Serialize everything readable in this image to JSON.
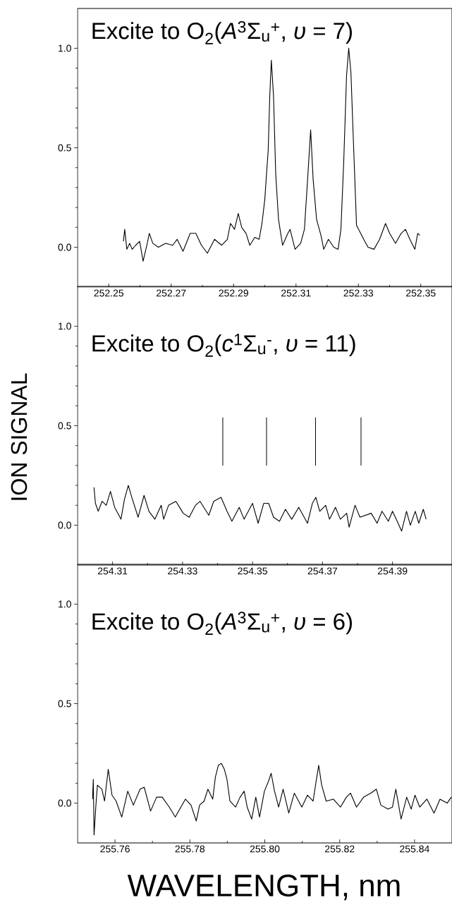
{
  "chart_data": [
    {
      "type": "line",
      "title": "Excite to O$_{2}$(*A*$^{3}$Σ$_{u}$$^{+}$, *υ* = 7)",
      "color": "#000000",
      "marker": "none",
      "xlim": [
        252.24,
        252.36
      ],
      "xticks": [
        252.25,
        252.27,
        252.29,
        252.31,
        252.33,
        252.35
      ],
      "ylim": [
        -0.2,
        1.2
      ],
      "yticks": [
        {
          "value": 0,
          "label": "0.0"
        },
        {
          "value": 0.5,
          "label": "0.5"
        },
        {
          "value": 1,
          "label": "1.0"
        }
      ],
      "x": [
        252.2547,
        252.2551,
        252.2558,
        252.2567,
        252.2575,
        252.2586,
        252.2599,
        252.261,
        252.2622,
        252.263,
        252.2641,
        252.2659,
        252.2682,
        252.2705,
        252.2719,
        252.2738,
        252.2761,
        252.2779,
        252.2797,
        252.2816,
        252.2839,
        252.2862,
        252.288,
        252.289,
        252.2903,
        252.2915,
        252.2926,
        252.294,
        252.2952,
        252.2968,
        252.2982,
        252.2991,
        252.3,
        252.3011,
        252.3016,
        252.3021,
        252.3028,
        252.3035,
        252.3044,
        252.3057,
        252.3074,
        252.3081,
        252.3097,
        252.3115,
        252.3127,
        252.3138,
        252.3147,
        252.3155,
        252.3166,
        252.318,
        252.3189,
        252.3204,
        252.3221,
        252.3235,
        252.3244,
        252.3253,
        252.3262,
        252.3269,
        252.3276,
        252.3285,
        252.3294,
        252.3304,
        252.3317,
        252.3331,
        252.335,
        252.3368,
        252.3387,
        252.34,
        252.3419,
        252.3437,
        252.3451,
        252.3465,
        252.3481,
        252.349,
        252.3497
      ],
      "values": [
        0.03,
        0.09,
        -0.01,
        0.02,
        -0.01,
        0.01,
        0.03,
        -0.07,
        0.01,
        0.07,
        0.02,
        0.0,
        0.02,
        0.01,
        0.04,
        -0.02,
        0.07,
        0.07,
        0.01,
        -0.03,
        0.04,
        0.01,
        0.04,
        0.12,
        0.09,
        0.17,
        0.1,
        0.07,
        0.01,
        0.05,
        0.04,
        0.12,
        0.24,
        0.49,
        0.76,
        0.94,
        0.76,
        0.37,
        0.14,
        0.01,
        0.07,
        0.09,
        -0.01,
        0.02,
        0.09,
        0.36,
        0.59,
        0.34,
        0.14,
        0.06,
        -0.01,
        0.04,
        0.0,
        -0.01,
        0.09,
        0.43,
        0.86,
        1.0,
        0.88,
        0.49,
        0.11,
        0.08,
        0.04,
        0.0,
        -0.01,
        0.04,
        0.12,
        0.07,
        0.02,
        0.07,
        0.09,
        0.04,
        -0.01,
        0.07,
        0.06
      ]
    },
    {
      "type": "line",
      "title": "Excite to O$_{2}$(*c*$^{1}$Σ$_{u}$$^{-}$, *υ* = 11)",
      "ylabel": "ION SIGNAL",
      "color": "#000000",
      "marker": "none",
      "xlim": [
        254.3,
        254.407
      ],
      "xticks": [
        254.31,
        254.33,
        254.35,
        254.37,
        254.39
      ],
      "ylim": [
        -0.2,
        1.2
      ],
      "yticks": [
        {
          "value": 0,
          "label": "0.0"
        },
        {
          "value": 0.5,
          "label": "0.5"
        },
        {
          "value": 1,
          "label": "1.0"
        }
      ],
      "ref_lines": [
        {
          "axis": "x",
          "value": 254.3415
        },
        {
          "axis": "x",
          "value": 254.354
        },
        {
          "axis": "x",
          "value": 254.368
        },
        {
          "axis": "x",
          "value": 254.381
        }
      ],
      "x": [
        254.3047,
        254.3051,
        254.3059,
        254.307,
        254.3082,
        254.3094,
        254.3106,
        254.3124,
        254.3134,
        254.3145,
        254.3155,
        254.3173,
        254.319,
        254.3204,
        254.3221,
        254.3239,
        254.3246,
        254.326,
        254.3281,
        254.3302,
        254.3319,
        254.3337,
        254.335,
        254.3375,
        254.3389,
        254.341,
        254.3427,
        254.3441,
        254.3462,
        254.3476,
        254.35,
        254.3516,
        254.3532,
        254.3546,
        254.356,
        254.3577,
        254.3594,
        254.3612,
        254.3632,
        254.3657,
        254.3671,
        254.3681,
        254.3692,
        254.3709,
        254.372,
        254.3737,
        254.3751,
        254.3769,
        254.3776,
        254.3793,
        254.3807,
        254.3839,
        254.3856,
        254.387,
        254.3888,
        254.39,
        254.3916,
        254.3926,
        254.394,
        254.3951,
        254.3965,
        254.3975,
        254.3988,
        254.3996
      ],
      "values": [
        0.19,
        0.11,
        0.07,
        0.12,
        0.1,
        0.17,
        0.09,
        0.03,
        0.13,
        0.2,
        0.14,
        0.04,
        0.15,
        0.07,
        0.03,
        0.1,
        0.03,
        0.1,
        0.12,
        0.06,
        0.04,
        0.1,
        0.12,
        0.05,
        0.12,
        0.14,
        0.07,
        0.02,
        0.09,
        0.03,
        0.11,
        0.01,
        0.11,
        0.11,
        0.04,
        0.02,
        0.08,
        0.03,
        0.09,
        0.01,
        0.11,
        0.14,
        0.07,
        0.1,
        0.03,
        0.09,
        0.03,
        0.06,
        -0.01,
        0.1,
        0.04,
        0.06,
        0.01,
        0.07,
        0.02,
        0.07,
        0.01,
        -0.03,
        0.07,
        0.0,
        0.07,
        0.01,
        0.08,
        0.03
      ]
    },
    {
      "type": "line",
      "title": "Excite to O$_{2}$(*A*$^{3}$Σ$_{u}$$^{+}$, *υ* = 6)",
      "xlabel": "WAVELENGTH, nm",
      "color": "#000000",
      "marker": "none",
      "xlim": [
        255.75,
        255.85
      ],
      "xticks": [
        255.76,
        255.78,
        {
          "value": 255.8,
          "label": "255.80"
        },
        255.82,
        255.84
      ],
      "ylim": [
        -0.2,
        1.2
      ],
      "yticks": [
        {
          "value": 0,
          "label": "0.0"
        },
        {
          "value": 0.5,
          "label": "0.5"
        },
        {
          "value": 1,
          "label": "1.0"
        }
      ],
      "x": [
        255.754,
        255.7542,
        255.7544,
        255.7549,
        255.7553,
        255.7565,
        255.7572,
        255.7582,
        255.7592,
        255.7603,
        255.7618,
        255.7634,
        255.7649,
        255.7667,
        255.7678,
        255.7695,
        255.7711,
        255.7726,
        255.7745,
        255.7761,
        255.7788,
        255.7803,
        255.7817,
        255.7826,
        255.7838,
        255.7848,
        255.7861,
        255.7868,
        255.7876,
        255.7884,
        255.7892,
        255.7899,
        255.7907,
        255.7922,
        255.7934,
        255.7945,
        255.7953,
        255.7965,
        255.7976,
        255.7986,
        255.7999,
        255.801,
        255.8017,
        255.8026,
        255.8037,
        255.8049,
        255.8064,
        255.8079,
        255.8099,
        255.8114,
        255.8129,
        255.8138,
        255.8144,
        255.8152,
        255.8164,
        255.8183,
        255.8202,
        255.8218,
        255.8229,
        255.8245,
        255.8264,
        255.8283,
        255.8298,
        255.831,
        255.8329,
        255.8341,
        255.835,
        255.8364,
        255.8379,
        255.8391,
        255.8401,
        255.8414,
        255.8433,
        255.8452,
        255.8468,
        255.8487,
        255.8498
      ],
      "values": [
        0.02,
        0.12,
        -0.16,
        -0.01,
        0.09,
        0.07,
        0.01,
        0.17,
        0.04,
        0.01,
        -0.07,
        0.06,
        -0.01,
        0.07,
        0.08,
        -0.04,
        0.03,
        0.03,
        -0.02,
        -0.07,
        0.02,
        -0.01,
        -0.09,
        -0.01,
        0.01,
        0.07,
        0.02,
        0.13,
        0.19,
        0.2,
        0.17,
        0.12,
        0.01,
        -0.02,
        0.03,
        0.06,
        -0.02,
        -0.08,
        0.03,
        -0.07,
        0.06,
        0.11,
        0.15,
        0.06,
        -0.02,
        0.07,
        -0.05,
        0.05,
        -0.02,
        0.04,
        0.01,
        0.12,
        0.19,
        0.09,
        0.01,
        0.02,
        -0.02,
        0.03,
        0.05,
        -0.02,
        0.03,
        0.05,
        0.07,
        -0.01,
        -0.03,
        -0.02,
        0.07,
        -0.08,
        0.03,
        -0.03,
        0.04,
        -0.02,
        0.02,
        -0.05,
        0.02,
        0.0,
        0.03
      ]
    }
  ]
}
